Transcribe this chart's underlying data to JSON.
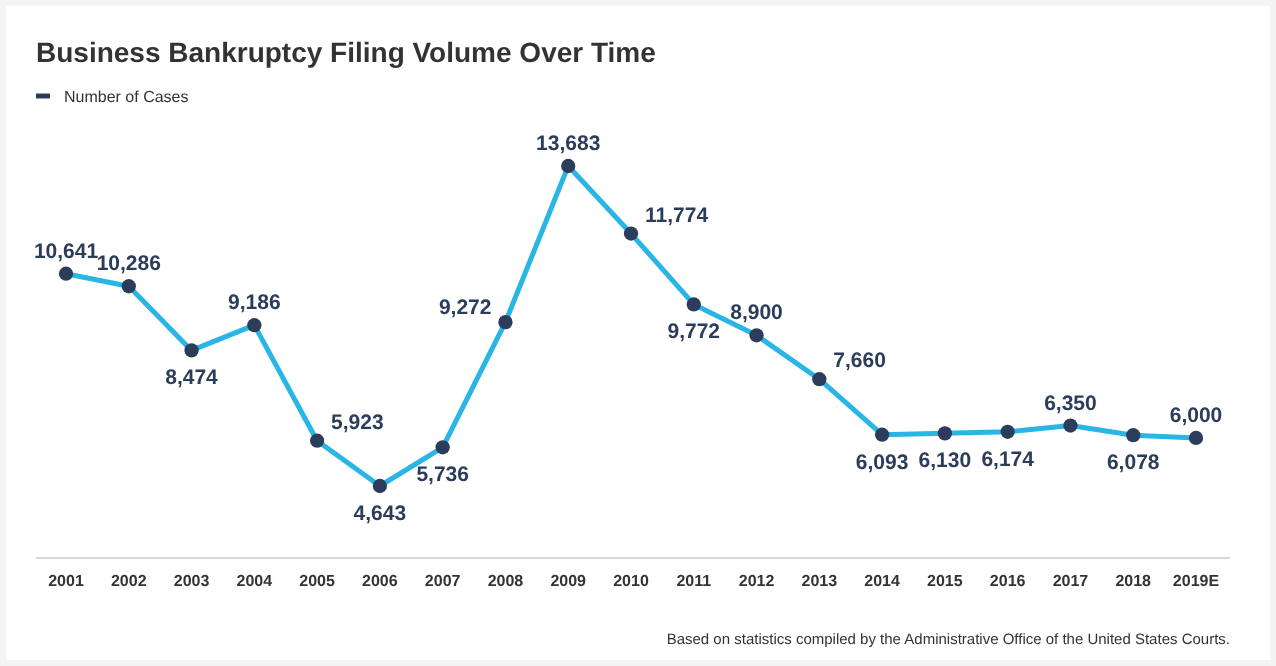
{
  "chart_data": {
    "type": "line",
    "title": "Business Bankruptcy Filing Volume Over Time",
    "categories": [
      "2001",
      "2002",
      "2003",
      "2004",
      "2005",
      "2006",
      "2007",
      "2008",
      "2009",
      "2010",
      "2011",
      "2012",
      "2013",
      "2014",
      "2015",
      "2016",
      "2017",
      "2018",
      "2019E"
    ],
    "series": [
      {
        "name": "Number of Cases",
        "color": "#29b5e6",
        "values": [
          10641,
          10286,
          8474,
          9186,
          5923,
          4643,
          5736,
          9272,
          13683,
          11774,
          9772,
          8900,
          7660,
          6093,
          6130,
          6174,
          6350,
          6078,
          6000
        ],
        "value_labels": [
          "10,641",
          "10,286",
          "8,474",
          "9,186",
          "5,923",
          "4,643",
          "5,736",
          "9,272",
          "13,683",
          "11,774",
          "9,772",
          "8,900",
          "7,660",
          "6,093",
          "6,130",
          "6,174",
          "6,350",
          "6,078",
          "6,000"
        ]
      }
    ],
    "marker": "circle",
    "legend": "top left",
    "annotations": [
      "Based on statistics compiled by the Administrative Office of the United States Courts."
    ]
  }
}
